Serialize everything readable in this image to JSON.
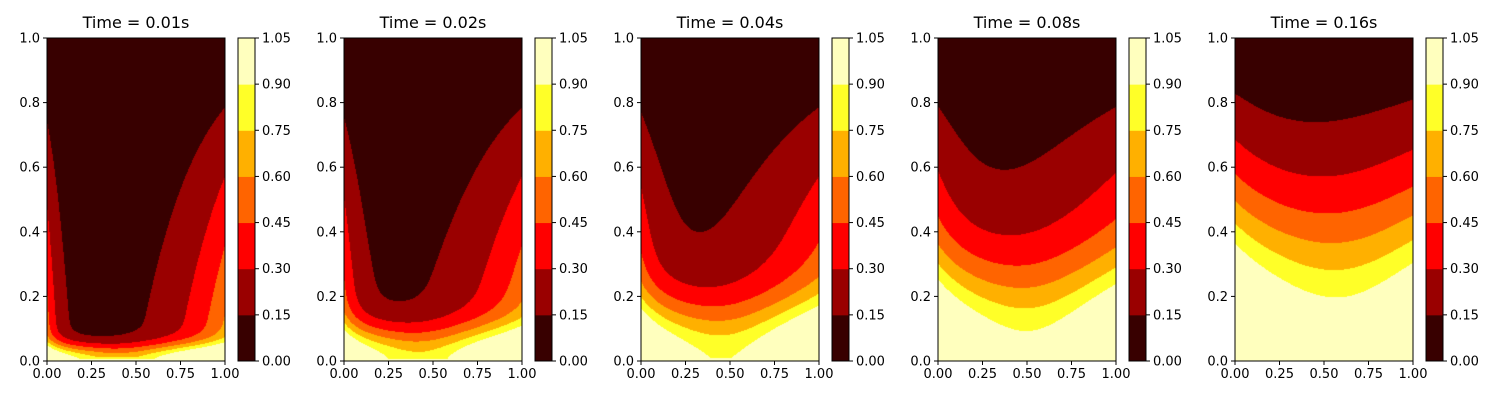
{
  "chart_data": {
    "type": "contourf",
    "colormap": "hot",
    "levels": [
      0.0,
      0.15,
      0.3,
      0.45,
      0.6,
      0.75,
      0.9,
      1.05
    ],
    "level_labels": [
      "0.00",
      "0.15",
      "0.30",
      "0.45",
      "0.60",
      "0.75",
      "0.90",
      "1.05"
    ],
    "level_colors": [
      "#380000",
      "#9a0000",
      "#ff0000",
      "#ff6400",
      "#ffb000",
      "#ffff28",
      "#ffffbe"
    ],
    "xlim": [
      0,
      1
    ],
    "ylim": [
      0,
      1
    ],
    "x_ticks": [
      0,
      0.25,
      0.5,
      0.75,
      1.0
    ],
    "x_tick_labels": [
      "0.00",
      "0.25",
      "0.50",
      "0.75",
      "1.00"
    ],
    "y_ticks": [
      0,
      0.2,
      0.4,
      0.6,
      0.8,
      1.0
    ],
    "y_tick_labels": [
      "0.0",
      "0.2",
      "0.4",
      "0.6",
      "0.8",
      "1.0"
    ],
    "panels": [
      {
        "title": "Time = 0.01s",
        "time": 0.01
      },
      {
        "title": "Time = 0.02s",
        "time": 0.02
      },
      {
        "title": "Time = 0.04s",
        "time": 0.04
      },
      {
        "title": "Time = 0.08s",
        "time": 0.08
      },
      {
        "title": "Time = 0.16s",
        "time": 0.16
      }
    ]
  }
}
